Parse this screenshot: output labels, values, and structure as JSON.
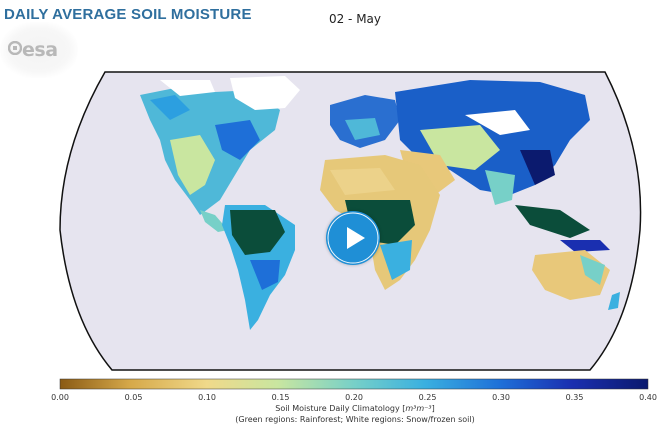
{
  "header": {
    "title": "DAILY AVERAGE SOIL MOISTURE"
  },
  "map": {
    "date": "02 - May",
    "logo_text": "esa",
    "play_icon": "play-icon"
  },
  "colorbar": {
    "ticks": [
      "0.00",
      "0.05",
      "0.10",
      "0.15",
      "0.20",
      "0.25",
      "0.30",
      "0.35",
      "0.40"
    ],
    "title_prefix": "Soil Moisture Daily Climatology [",
    "unit": "m³m⁻³",
    "title_suffix": "]",
    "subtitle": "(Green regions: Rainforest; White regions: Snow/frozen soil)",
    "colors": [
      "#8a5a14",
      "#d6a94a",
      "#f0d98a",
      "#c9e6a0",
      "#77d0c8",
      "#3ab0e0",
      "#1e6fd8",
      "#1a2fb0",
      "#0b1a6e"
    ]
  }
}
